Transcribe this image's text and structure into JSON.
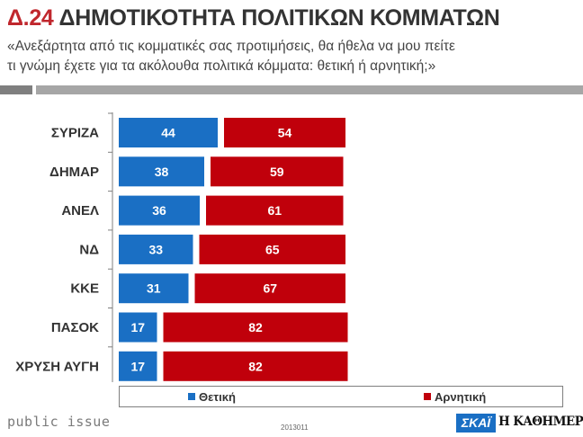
{
  "header": {
    "code": "Δ.24",
    "title": "ΔΗΜΟΤΙΚΟΤΗΤΑ ΠΟΛΙΤΙΚΩΝ ΚΟΜΜΑΤΩΝ",
    "subtitle_line1": "«Ανεξάρτητα από τις κομματικές σας προτιμήσεις, θα ήθελα να μου πείτε",
    "subtitle_line2": "τι γνώμη έχετε για τα ακόλουθα πολιτικά κόμματα: θετική ή αρνητική;»"
  },
  "colors": {
    "positive": "#1a6fc4",
    "negative": "#c0000b",
    "title_accent": "#c0272d"
  },
  "chart_data": {
    "type": "bar",
    "orientation": "horizontal",
    "stacked": true,
    "categories": [
      "ΣΥΡΙΖΑ",
      "ΔΗΜΑΡ",
      "ΑΝΕΛ",
      "ΝΔ",
      "ΚΚΕ",
      "ΠΑΣΟΚ",
      "ΧΡΥΣΗ ΑΥΓΗ"
    ],
    "series": [
      {
        "name": "Θετική",
        "values": [
          44,
          38,
          36,
          33,
          31,
          17,
          17
        ]
      },
      {
        "name": "Αρνητική",
        "values": [
          54,
          59,
          61,
          65,
          67,
          82,
          82
        ]
      }
    ],
    "legend_position": "bottom",
    "grid": false
  },
  "footer": {
    "brand_left": "public issue",
    "code": "2013011",
    "logo_skai": "ΣΚΑΪ",
    "logo_kathimerini": "Η ΚΑΘΗΜΕΡΙΝΗ"
  }
}
